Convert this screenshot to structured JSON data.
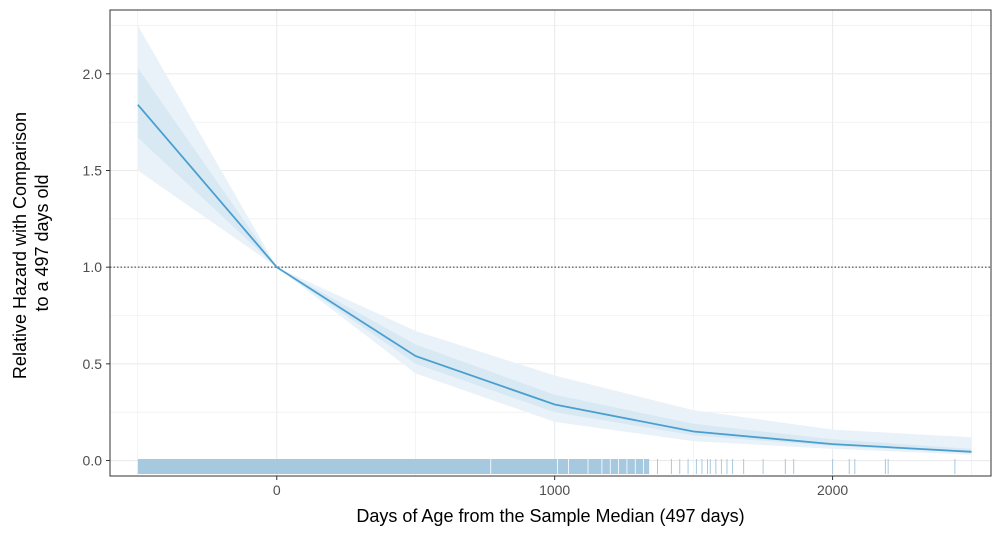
{
  "chart_data": {
    "type": "line",
    "title": "",
    "xlabel": "Days of Age from the Sample Median (497 days)",
    "ylabel_lines": [
      "Relative Hazard with Comparison",
      "to a 497 days old"
    ],
    "xlim": [
      -600,
      2570
    ],
    "ylim": [
      -0.08,
      2.33
    ],
    "x_ticks": [
      0,
      1000,
      2000
    ],
    "x_tick_labels": [
      "0",
      "1000",
      "2000"
    ],
    "y_ticks": [
      0.0,
      0.5,
      1.0,
      1.5,
      2.0
    ],
    "y_tick_labels": [
      "0.0",
      "0.5",
      "1.0",
      "1.5",
      "2.0"
    ],
    "reference_line_y": 1.0,
    "grid": true,
    "series": [
      {
        "x": [
          -500,
          0,
          500,
          1000,
          1500,
          2000,
          2500
        ],
        "y": [
          1.84,
          1.0,
          0.54,
          0.29,
          0.15,
          0.085,
          0.045
        ]
      }
    ],
    "ci_outer": {
      "lower": [
        1.5,
        1.0,
        0.45,
        0.2,
        0.1,
        0.06,
        0.03
      ],
      "upper": [
        2.25,
        1.0,
        0.67,
        0.44,
        0.26,
        0.16,
        0.12
      ]
    },
    "ci_inner": {
      "lower": [
        1.67,
        1.0,
        0.5,
        0.25,
        0.13,
        0.075,
        0.04
      ],
      "upper": [
        2.03,
        1.0,
        0.6,
        0.34,
        0.19,
        0.11,
        0.06
      ]
    },
    "rug_dense_range": [
      -500,
      1340
    ],
    "rug_x": [
      1370,
      1420,
      1450,
      1480,
      1510,
      1530,
      1550,
      1560,
      1580,
      1600,
      1620,
      1640,
      1680,
      1750,
      1830,
      1860,
      2000,
      2060,
      2080,
      2190,
      2200,
      2440
    ],
    "colors": {
      "line": "#4a9fd0",
      "ci_outer": "#e9f2f9",
      "ci_inner": "#d9e9f4",
      "rug": "#a7c9df",
      "grid": "#ebebeb",
      "panel_border": "#333333",
      "reference_line": "#333333"
    }
  }
}
